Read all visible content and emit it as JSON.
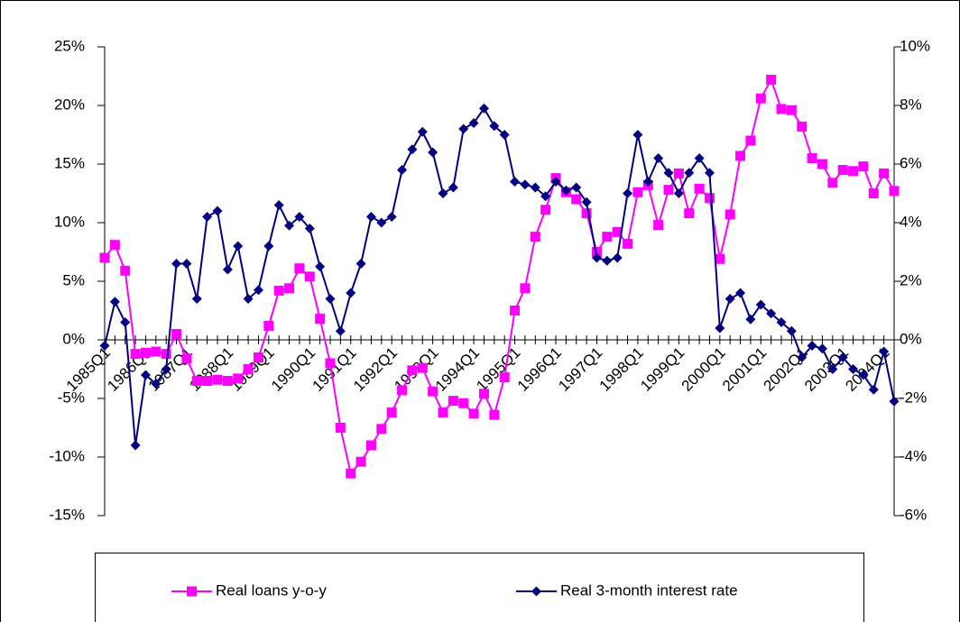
{
  "chart_data": {
    "type": "line",
    "categories": [
      "1985Q1",
      null,
      null,
      null,
      "1986Q1",
      null,
      null,
      null,
      "1987Q1",
      null,
      null,
      null,
      "1988Q1",
      null,
      null,
      null,
      "1989Q1",
      null,
      null,
      null,
      "1990Q1",
      null,
      null,
      null,
      "1991Q1",
      null,
      null,
      null,
      "1992Q1",
      null,
      null,
      null,
      "1993Q1",
      null,
      null,
      null,
      "1994Q1",
      null,
      null,
      null,
      "1995Q1",
      null,
      null,
      null,
      "1996Q1",
      null,
      null,
      null,
      "1997Q1",
      null,
      null,
      null,
      "1998Q1",
      null,
      null,
      null,
      "1999Q1",
      null,
      null,
      null,
      "2000Q1",
      null,
      null,
      null,
      "2001Q1",
      null,
      null,
      null,
      "2002Q1",
      null,
      null,
      null,
      "2003Q1",
      null,
      null,
      null,
      "2004Q1",
      null
    ],
    "series": [
      {
        "name": "Real loans y-o-y",
        "color": "#ff00ff",
        "marker": "square",
        "values": [
          7.0,
          8.1,
          5.9,
          -1.2,
          -1.1,
          -1.0,
          -1.2,
          0.5,
          -1.6,
          -3.5,
          -3.5,
          -3.4,
          -3.5,
          -3.3,
          -2.5,
          -1.5,
          1.2,
          4.2,
          4.4,
          6.1,
          5.4,
          1.8,
          -2.0,
          -7.5,
          -11.4,
          -10.4,
          -9.0,
          -7.6,
          -6.2,
          -4.3,
          -2.6,
          -2.4,
          -4.4,
          -6.2,
          -5.2,
          -5.4,
          -6.3,
          -4.6,
          -6.4,
          -3.2,
          2.5,
          4.4,
          8.8,
          11.1,
          13.8,
          12.6,
          12.0,
          10.8,
          7.5,
          8.8,
          9.2,
          8.2,
          12.6,
          13.2,
          9.8,
          12.8,
          14.2,
          10.8,
          12.9,
          12.1,
          6.9,
          10.7,
          15.7,
          17.0,
          20.6,
          22.2,
          19.7,
          19.6,
          18.2,
          15.5,
          15.0,
          13.4,
          14.5,
          14.4,
          14.8,
          12.5,
          14.2,
          12.7
        ]
      },
      {
        "name": "Real 3-month interest rate",
        "color": "#000080",
        "marker": "diamond",
        "axis": "y2",
        "values": [
          -0.2,
          1.3,
          0.6,
          -3.6,
          -1.2,
          -1.5,
          -1.0,
          2.6,
          2.6,
          1.4,
          4.2,
          4.4,
          2.4,
          3.2,
          1.4,
          1.7,
          3.2,
          4.6,
          3.9,
          4.2,
          3.8,
          2.5,
          1.4,
          0.3,
          1.6,
          2.6,
          4.2,
          4.0,
          4.2,
          5.8,
          6.5,
          7.1,
          6.4,
          5.0,
          5.2,
          7.2,
          7.4,
          7.9,
          7.3,
          7.0,
          5.4,
          5.3,
          5.2,
          4.9,
          5.4,
          5.1,
          5.2,
          4.7,
          2.8,
          2.7,
          2.8,
          5.0,
          7.0,
          5.4,
          6.2,
          5.7,
          5.0,
          5.7,
          6.2,
          5.7,
          0.4,
          1.4,
          1.6,
          0.7,
          1.2,
          0.9,
          0.6,
          0.3,
          -0.6,
          -0.2,
          -0.3,
          -1.0,
          -0.6,
          -1.0,
          -1.2,
          -1.7,
          -0.4,
          -2.1
        ]
      }
    ],
    "ylim": [
      -15,
      25
    ],
    "yticks": [
      {
        "value": -15,
        "label": "-15%"
      },
      {
        "value": -10,
        "label": "-10%"
      },
      {
        "value": -5,
        "label": "-5%"
      },
      {
        "value": 0,
        "label": "0%"
      },
      {
        "value": 5,
        "label": "5%"
      },
      {
        "value": 10,
        "label": "10%"
      },
      {
        "value": 15,
        "label": "15%"
      },
      {
        "value": 20,
        "label": "20%"
      },
      {
        "value": 25,
        "label": "25%"
      }
    ],
    "y2lim": [
      -6,
      10
    ],
    "y2ticks": [
      {
        "value": -6,
        "label": "-6%"
      },
      {
        "value": -4,
        "label": "-4%"
      },
      {
        "value": -2,
        "label": "-2%"
      },
      {
        "value": 0,
        "label": "0%"
      },
      {
        "value": 2,
        "label": "2%"
      },
      {
        "value": 4,
        "label": "4%"
      },
      {
        "value": 6,
        "label": "6%"
      },
      {
        "value": 8,
        "label": "8%"
      },
      {
        "value": 10,
        "label": "10%"
      }
    ],
    "legend": "bottom"
  }
}
